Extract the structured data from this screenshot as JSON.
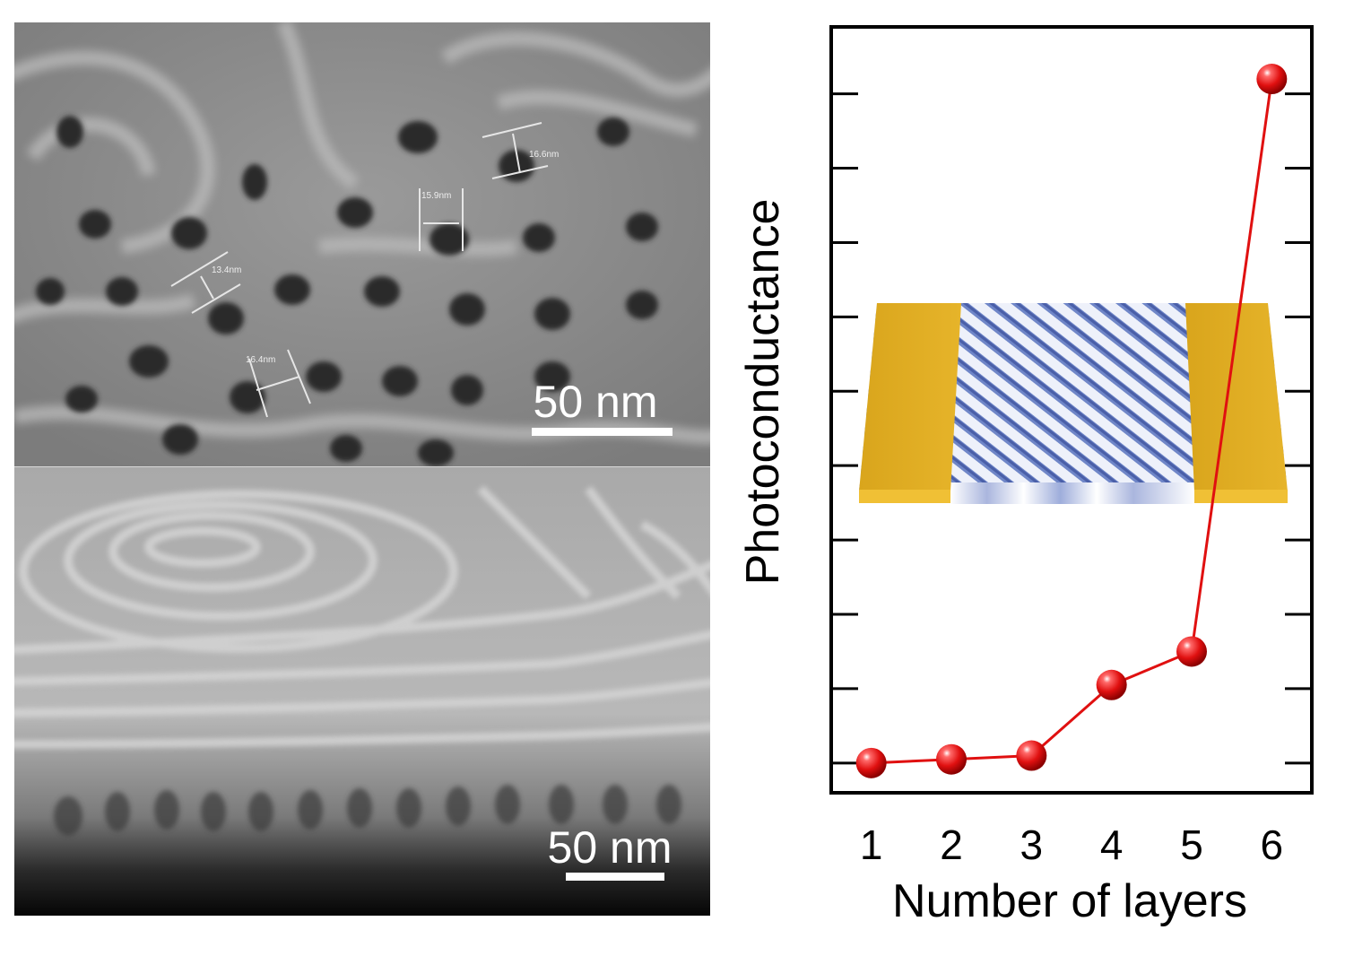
{
  "sem": {
    "top_scale_bar_label": "50 nm",
    "bottom_scale_bar_label": "50 nm",
    "measurements": [
      "16.6nm",
      "15.9nm",
      "13.4nm",
      "16.4nm"
    ]
  },
  "chart_data": {
    "type": "line",
    "xlabel": "Number of layers",
    "ylabel": "Photoconductance",
    "x": [
      1,
      2,
      3,
      4,
      5,
      6
    ],
    "x_tick_labels": [
      "1",
      "2",
      "3",
      "4",
      "5",
      "6"
    ],
    "xlim": [
      0.5,
      6.5
    ],
    "ylim": [
      -0.4,
      9.9
    ],
    "y_tick_labels_shown": false,
    "series": [
      {
        "values": [
          0.0,
          0.05,
          0.1,
          1.05,
          1.5,
          9.2
        ],
        "color": "#e01010",
        "marker": "sphere"
      }
    ],
    "grid": false,
    "legend": "none",
    "inset": "device illustration: patterned film between two gold electrodes"
  },
  "colors": {
    "series": "#e01010",
    "electrode": "#e0ad22",
    "film": "#6f86c8"
  }
}
